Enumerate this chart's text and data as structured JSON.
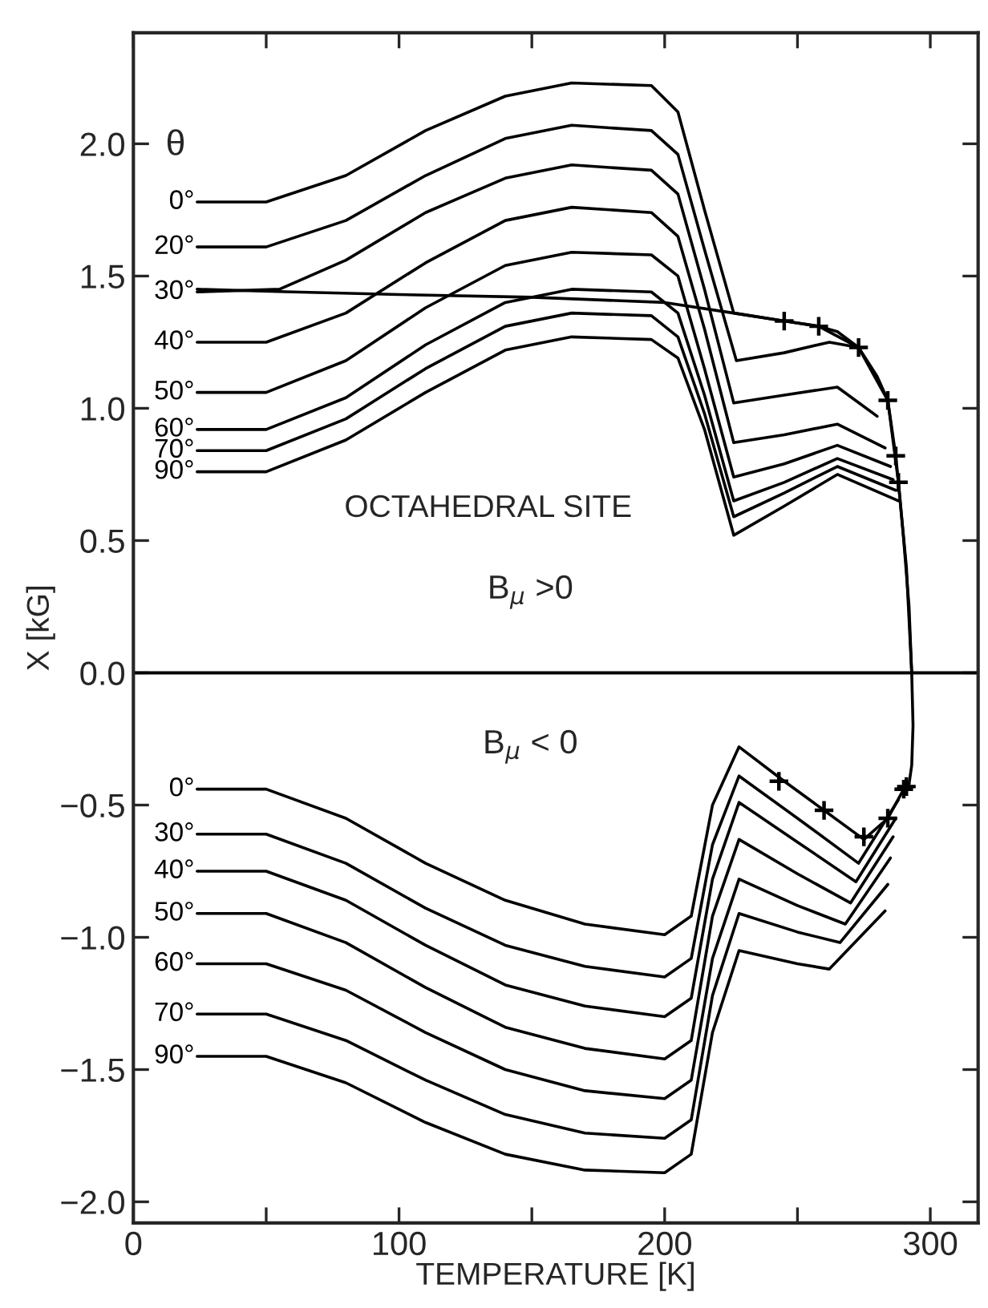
{
  "chart_data": {
    "type": "line",
    "xlabel": "TEMPERATURE [K]",
    "ylabel": "X [kG]",
    "xlim": [
      0,
      318
    ],
    "ylim": [
      -2.08,
      2.42
    ],
    "xticks": [
      0,
      {
        "value": 50,
        "label": null
      },
      100,
      {
        "value": 150,
        "label": null
      },
      200,
      {
        "value": 250,
        "label": null
      },
      300
    ],
    "yticks": [
      {
        "value": 2.0,
        "label": "2.0"
      },
      1.5,
      {
        "value": 1.0,
        "label": "1.0"
      },
      0.5,
      {
        "value": 0.0,
        "label": "0.0"
      },
      {
        "value": -0.5,
        "label": "−0.5"
      },
      {
        "value": -1.0,
        "label": "−1.0"
      },
      {
        "value": -1.5,
        "label": "−1.5"
      },
      {
        "value": -2.0,
        "label": "−2.0"
      }
    ],
    "grid": false,
    "legend": false,
    "marker": "none",
    "line_style": "solid",
    "ref_lines": [
      {
        "axis": "y",
        "value": 0,
        "color": "#000000"
      }
    ],
    "annotations": [
      "θ",
      "OCTAHEDRAL SITE",
      "B$_{μ}$ >0",
      "B$_{μ}$ < 0"
    ],
    "series": [
      {
        "name": "0°",
        "color": "#000000",
        "x": [
          24,
          50,
          80,
          110,
          140,
          165,
          195,
          205,
          215,
          226,
          245,
          258,
          273,
          284,
          288,
          291,
          293
        ],
        "values": [
          1.78,
          1.78,
          1.88,
          2.05,
          2.18,
          2.23,
          2.22,
          2.12,
          1.75,
          1.36,
          1.33,
          1.31,
          1.23,
          1.03,
          0.72,
          0.4,
          0.0
        ]
      },
      {
        "name": "20°",
        "color": "#000000",
        "x": [
          24,
          50,
          80,
          110,
          140,
          165,
          195,
          205,
          215,
          227,
          245,
          262,
          273
        ],
        "values": [
          1.61,
          1.61,
          1.71,
          1.88,
          2.02,
          2.07,
          2.05,
          1.96,
          1.6,
          1.18,
          1.21,
          1.25,
          1.23
        ]
      },
      {
        "name": "30°",
        "color": "#000000",
        "x": [
          24,
          55,
          80,
          110,
          140,
          165,
          195,
          205,
          215,
          226,
          245,
          265,
          280
        ],
        "values": [
          1.44,
          1.45,
          1.56,
          1.74,
          1.87,
          1.92,
          1.9,
          1.81,
          1.45,
          1.02,
          1.05,
          1.08,
          0.97
        ]
      },
      {
        "name": "40°",
        "color": "#000000",
        "x": [
          24,
          50,
          80,
          110,
          140,
          165,
          195,
          205,
          215,
          226,
          245,
          265,
          283
        ],
        "values": [
          1.25,
          1.25,
          1.36,
          1.55,
          1.71,
          1.76,
          1.74,
          1.65,
          1.3,
          0.87,
          0.9,
          0.94,
          0.85
        ]
      },
      {
        "name": "50°",
        "color": "#000000",
        "x": [
          24,
          50,
          80,
          110,
          140,
          165,
          195,
          205,
          215,
          226,
          245,
          265,
          285
        ],
        "values": [
          1.06,
          1.06,
          1.18,
          1.38,
          1.54,
          1.59,
          1.58,
          1.5,
          1.15,
          0.74,
          0.79,
          0.86,
          0.78
        ]
      },
      {
        "name": "60°",
        "color": "#000000",
        "x": [
          24,
          50,
          80,
          110,
          140,
          165,
          195,
          205,
          215,
          226,
          245,
          265,
          286
        ],
        "values": [
          0.92,
          0.92,
          1.04,
          1.24,
          1.4,
          1.45,
          1.44,
          1.36,
          1.05,
          0.65,
          0.72,
          0.81,
          0.73
        ]
      },
      {
        "name": "70°",
        "color": "#000000",
        "x": [
          24,
          50,
          80,
          110,
          140,
          165,
          195,
          205,
          215,
          226,
          245,
          265,
          287
        ],
        "values": [
          0.84,
          0.84,
          0.96,
          1.15,
          1.31,
          1.36,
          1.35,
          1.27,
          0.98,
          0.59,
          0.68,
          0.78,
          0.69
        ]
      },
      {
        "name": "90°",
        "color": "#000000",
        "x": [
          24,
          50,
          80,
          110,
          140,
          165,
          195,
          205,
          215,
          226,
          245,
          265,
          288
        ],
        "values": [
          0.76,
          0.76,
          0.88,
          1.06,
          1.22,
          1.27,
          1.26,
          1.19,
          0.92,
          0.52,
          0.63,
          0.75,
          0.65
        ]
      },
      {
        "color": "#000000",
        "x": [
          24,
          60,
          100,
          150,
          200,
          226,
          245,
          258,
          265,
          273,
          280,
          284,
          287,
          288,
          290,
          292,
          293,
          293.5,
          293,
          292
        ],
        "values": [
          1.45,
          1.44,
          1.43,
          1.42,
          1.4,
          1.36,
          1.33,
          1.31,
          1.29,
          1.23,
          1.12,
          1.03,
          0.82,
          0.72,
          0.5,
          0.25,
          0.0,
          -0.2,
          -0.35,
          -0.42
        ]
      },
      {
        "type": "scatter",
        "marker": "cross",
        "color": "#000000",
        "x": [
          245,
          258,
          273,
          284,
          287,
          288,
          243,
          260,
          275,
          284,
          290,
          291
        ],
        "values": [
          1.33,
          1.31,
          1.23,
          1.03,
          0.82,
          0.72,
          -0.41,
          -0.52,
          -0.62,
          -0.55,
          -0.44,
          -0.43
        ]
      },
      {
        "name": "0°",
        "color": "#000000",
        "x": [
          24,
          50,
          80,
          110,
          140,
          170,
          200,
          210,
          218,
          228,
          245,
          260,
          275,
          284,
          290,
          292
        ],
        "values": [
          -0.44,
          -0.44,
          -0.55,
          -0.72,
          -0.86,
          -0.95,
          -0.99,
          -0.92,
          -0.5,
          -0.28,
          -0.41,
          -0.52,
          -0.63,
          -0.55,
          -0.44,
          -0.42
        ]
      },
      {
        "name": "30°",
        "color": "#000000",
        "x": [
          24,
          50,
          80,
          110,
          140,
          170,
          200,
          210,
          218,
          228,
          250,
          273,
          288
        ],
        "values": [
          -0.61,
          -0.61,
          -0.72,
          -0.89,
          -1.03,
          -1.11,
          -1.15,
          -1.08,
          -0.65,
          -0.39,
          -0.55,
          -0.72,
          -0.48
        ]
      },
      {
        "name": "40°",
        "color": "#000000",
        "x": [
          24,
          50,
          80,
          110,
          140,
          170,
          200,
          210,
          218,
          228,
          250,
          272,
          287
        ],
        "values": [
          -0.75,
          -0.75,
          -0.86,
          -1.03,
          -1.18,
          -1.26,
          -1.3,
          -1.23,
          -0.78,
          -0.49,
          -0.64,
          -0.79,
          -0.55
        ]
      },
      {
        "name": "50°",
        "color": "#000000",
        "x": [
          24,
          50,
          80,
          110,
          140,
          170,
          200,
          210,
          218,
          228,
          250,
          270,
          286
        ],
        "values": [
          -0.91,
          -0.91,
          -1.02,
          -1.19,
          -1.34,
          -1.42,
          -1.46,
          -1.39,
          -0.92,
          -0.63,
          -0.76,
          -0.87,
          -0.62
        ]
      },
      {
        "name": "60°",
        "color": "#000000",
        "x": [
          24,
          50,
          80,
          110,
          140,
          170,
          200,
          210,
          218,
          228,
          250,
          268,
          285
        ],
        "values": [
          -1.1,
          -1.1,
          -1.2,
          -1.36,
          -1.5,
          -1.58,
          -1.61,
          -1.54,
          -1.08,
          -0.78,
          -0.88,
          -0.95,
          -0.7
        ]
      },
      {
        "name": "70°",
        "color": "#000000",
        "x": [
          24,
          50,
          80,
          110,
          140,
          170,
          200,
          210,
          218,
          228,
          250,
          266,
          284
        ],
        "values": [
          -1.29,
          -1.29,
          -1.39,
          -1.54,
          -1.67,
          -1.74,
          -1.76,
          -1.69,
          -1.22,
          -0.91,
          -0.98,
          -1.02,
          -0.8
        ]
      },
      {
        "name": "90°",
        "color": "#000000",
        "x": [
          24,
          50,
          80,
          110,
          140,
          170,
          200,
          210,
          218,
          228,
          250,
          262,
          283
        ],
        "values": [
          -1.45,
          -1.45,
          -1.55,
          -1.7,
          -1.82,
          -1.88,
          -1.89,
          -1.82,
          -1.36,
          -1.05,
          -1.1,
          -1.12,
          -0.9
        ]
      }
    ]
  }
}
